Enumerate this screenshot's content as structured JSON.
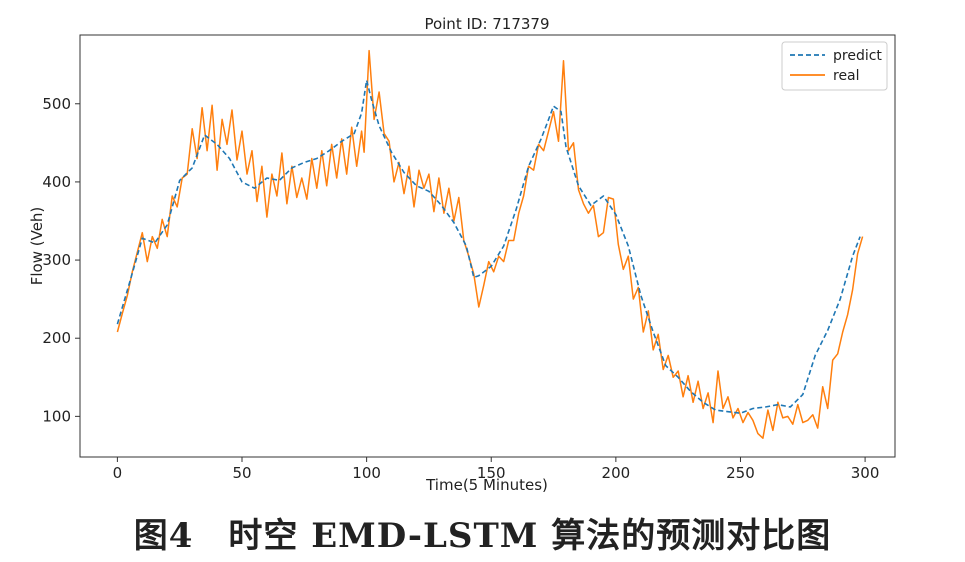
{
  "chart_data": {
    "type": "line",
    "title": "Point ID: 717379",
    "xlabel": "Time(5 Minutes)",
    "ylabel": "Flow (Veh)",
    "xlim": [
      -15,
      312
    ],
    "ylim": [
      48,
      588
    ],
    "xticks": [
      0,
      50,
      100,
      150,
      200,
      250,
      300
    ],
    "yticks": [
      100,
      200,
      300,
      400,
      500
    ],
    "legend_position": "top-right",
    "series": [
      {
        "name": "predict",
        "style": "dashed",
        "color": "#1f77b4",
        "x": [
          0,
          5,
          10,
          15,
          20,
          25,
          30,
          35,
          40,
          45,
          50,
          55,
          60,
          65,
          70,
          75,
          80,
          85,
          90,
          95,
          98,
          100,
          102,
          105,
          110,
          115,
          120,
          125,
          130,
          135,
          140,
          143,
          145,
          150,
          155,
          160,
          165,
          170,
          173,
          175,
          178,
          180,
          185,
          190,
          195,
          200,
          205,
          210,
          215,
          220,
          225,
          230,
          235,
          240,
          245,
          250,
          255,
          260,
          265,
          270,
          275,
          280,
          285,
          290,
          295,
          298
        ],
        "y": [
          218,
          272,
          328,
          322,
          345,
          402,
          418,
          460,
          448,
          430,
          400,
          392,
          405,
          402,
          418,
          425,
          430,
          440,
          452,
          462,
          488,
          530,
          505,
          472,
          438,
          412,
          395,
          388,
          370,
          348,
          318,
          278,
          280,
          292,
          318,
          365,
          420,
          455,
          480,
          497,
          490,
          445,
          395,
          370,
          382,
          358,
          318,
          255,
          208,
          165,
          150,
          132,
          118,
          108,
          106,
          104,
          110,
          112,
          115,
          112,
          128,
          178,
          210,
          250,
          305,
          330
        ]
      },
      {
        "name": "real",
        "style": "solid",
        "color": "#ff7f0e",
        "x": [
          0,
          2,
          4,
          6,
          8,
          10,
          12,
          14,
          16,
          18,
          20,
          22,
          24,
          26,
          28,
          30,
          32,
          34,
          36,
          38,
          40,
          42,
          44,
          46,
          48,
          50,
          52,
          54,
          56,
          58,
          60,
          62,
          64,
          66,
          68,
          70,
          72,
          74,
          76,
          78,
          80,
          82,
          84,
          86,
          88,
          90,
          92,
          94,
          96,
          98,
          99,
          101,
          103,
          105,
          107,
          109,
          111,
          113,
          115,
          117,
          119,
          121,
          123,
          125,
          127,
          129,
          131,
          133,
          135,
          137,
          139,
          141,
          143,
          145,
          147,
          149,
          151,
          153,
          155,
          157,
          159,
          161,
          163,
          165,
          167,
          169,
          171,
          173,
          175,
          177,
          179,
          181,
          183,
          185,
          187,
          189,
          191,
          193,
          195,
          197,
          199,
          201,
          203,
          205,
          207,
          209,
          211,
          213,
          215,
          217,
          219,
          221,
          223,
          225,
          227,
          229,
          231,
          233,
          235,
          237,
          239,
          241,
          243,
          245,
          247,
          249,
          251,
          253,
          255,
          257,
          259,
          261,
          263,
          265,
          267,
          269,
          271,
          273,
          275,
          277,
          279,
          281,
          283,
          285,
          287,
          289,
          291,
          293,
          295,
          297,
          299
        ],
        "y": [
          208,
          232,
          255,
          285,
          310,
          335,
          298,
          330,
          315,
          352,
          330,
          382,
          368,
          405,
          410,
          468,
          430,
          495,
          440,
          498,
          415,
          480,
          448,
          492,
          428,
          465,
          410,
          440,
          375,
          420,
          355,
          410,
          382,
          437,
          372,
          420,
          380,
          405,
          378,
          430,
          392,
          440,
          395,
          448,
          405,
          455,
          410,
          470,
          420,
          465,
          438,
          568,
          480,
          515,
          462,
          452,
          400,
          425,
          385,
          420,
          368,
          415,
          392,
          410,
          362,
          405,
          360,
          392,
          350,
          380,
          325,
          305,
          282,
          240,
          268,
          298,
          285,
          305,
          298,
          325,
          325,
          360,
          382,
          420,
          415,
          448,
          440,
          465,
          490,
          452,
          555,
          440,
          450,
          390,
          372,
          360,
          370,
          330,
          335,
          380,
          378,
          320,
          288,
          305,
          250,
          265,
          208,
          235,
          185,
          205,
          160,
          178,
          150,
          158,
          125,
          152,
          118,
          145,
          110,
          130,
          92,
          158,
          110,
          125,
          98,
          110,
          92,
          105,
          95,
          78,
          72,
          108,
          82,
          118,
          98,
          100,
          90,
          115,
          92,
          95,
          102,
          85,
          138,
          110,
          172,
          180,
          208,
          230,
          262,
          308,
          330
        ]
      }
    ]
  },
  "figure_caption": "图4　时空 EMD-LSTM 算法的预测对比图"
}
